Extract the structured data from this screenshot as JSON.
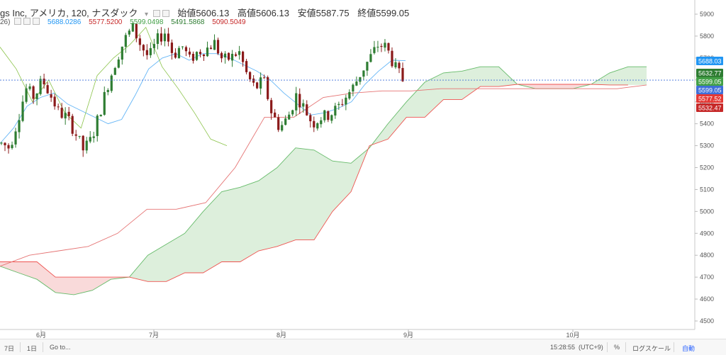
{
  "legend": {
    "title": "gs Inc, アメリカ, 120, ナスダック",
    "open_label": "始値",
    "open_value": "5606.13",
    "high_label": "高値",
    "high_value": "5606.13",
    "low_label": "安値",
    "low_value": "5587.75",
    "close_label": "終値",
    "close_value": "5599.05",
    "ichimoku_prefix": "26)",
    "ichimoku_values": [
      {
        "text": "5688.0286",
        "color": "#2196f3"
      },
      {
        "text": "5577.5200",
        "color": "#c62828"
      },
      {
        "text": "5599.0498",
        "color": "#43a047"
      },
      {
        "text": "5491.5868",
        "color": "#2e7d32"
      },
      {
        "text": "5090.5049",
        "color": "#c62828"
      }
    ]
  },
  "bottombar": {
    "range_7d": "7日",
    "range_1d": "1日",
    "goto": "Go to...",
    "time": "15:28:55",
    "timezone": "(UTC+9)",
    "percent": "%",
    "log_scale": "ログスケール",
    "auto": "自動"
  },
  "chart_data": {
    "type": "candlestick",
    "title": "",
    "xlabel": "",
    "ylabel": "",
    "ylim": [
      4470,
      5960
    ],
    "yticks": [
      4500,
      4600,
      4700,
      4800,
      4900,
      5000,
      5100,
      5200,
      5300,
      5400,
      5500,
      5600,
      5700,
      5800,
      5900
    ],
    "x_labels": [
      "6月",
      "7月",
      "8月",
      "9月",
      "10月"
    ],
    "grid": false,
    "price_line": 5599.05,
    "price_tags": [
      {
        "value": "5688.03",
        "price": 5688.03,
        "color": "#2196f3"
      },
      {
        "value": "5632.77",
        "price": 5632.77,
        "color": "#2e7d32"
      },
      {
        "value": "5599.05",
        "price": 5599.05,
        "color": "#43a047"
      },
      {
        "value": "5599.05",
        "price": 5599.05,
        "color": "#3f6fd8"
      },
      {
        "value": "5577.52",
        "price": 5577.52,
        "color": "#e53935"
      },
      {
        "value": "5532.47",
        "price": 5532.47,
        "color": "#c62828"
      }
    ],
    "candles": {
      "count": 114,
      "path": [
        5310,
        5290,
        5420,
        5560,
        5520,
        5600,
        5530,
        5450,
        5430,
        5360,
        5280,
        5330,
        5450,
        5580,
        5690,
        5780,
        5840,
        5760,
        5700,
        5780,
        5820,
        5710,
        5760,
        5690,
        5730,
        5740,
        5770,
        5690,
        5700,
        5730,
        5620,
        5560,
        5600,
        5450,
        5380,
        5430,
        5530,
        5470,
        5400,
        5430,
        5440,
        5470,
        5520,
        5570,
        5640,
        5700,
        5760,
        5750,
        5660,
        5600
      ],
      "gap_after_index": 86,
      "up_color": "#2e7d32",
      "down_color": "#8b1a1a"
    },
    "series": [
      {
        "name": "tenkan",
        "color": "#64b5f6",
        "values": [
          5310,
          5380,
          5480,
          5520,
          5540,
          5490,
          5460,
          5430,
          5400,
          5420,
          5530,
          5650,
          5700,
          5720,
          5690,
          5720,
          5720,
          5700,
          5670,
          5640,
          5600,
          5540,
          5490,
          5440,
          5450,
          5470,
          5500,
          5580,
          5640,
          5690,
          5688
        ]
      },
      {
        "name": "kijun",
        "color": "#e57373",
        "values": [
          4750,
          4800,
          4820,
          4840,
          4900,
          5010,
          5010,
          5040,
          5200,
          5430,
          5430,
          5520,
          5540,
          5550,
          5550,
          5560,
          5560,
          5560,
          5560,
          5560,
          5560,
          5560,
          5577
        ]
      },
      {
        "name": "chikou",
        "color": "#8bc34a",
        "values": [
          5750,
          5650,
          5500,
          5600,
          5450,
          5380,
          5620,
          5700,
          5760,
          5840,
          5660,
          5560,
          5450,
          5330,
          5300
        ]
      },
      {
        "name": "senkou_a",
        "color": "#66bb6a",
        "values": [
          4750,
          4720,
          4690,
          4630,
          4620,
          4640,
          4690,
          4700,
          4800,
          4850,
          4900,
          5000,
          5090,
          5110,
          5140,
          5200,
          5290,
          5280,
          5230,
          5220,
          5290,
          5400,
          5500,
          5590,
          5632,
          5640,
          5660,
          5660,
          5580,
          5560,
          5560,
          5560,
          5580,
          5632,
          5660,
          5660
        ]
      },
      {
        "name": "senkou_b",
        "color": "#ef5350",
        "values": [
          4770,
          4770,
          4770,
          4700,
          4700,
          4700,
          4700,
          4700,
          4680,
          4680,
          4720,
          4720,
          4770,
          4770,
          4820,
          4840,
          4870,
          4870,
          5000,
          5090,
          5300,
          5330,
          5430,
          5430,
          5510,
          5510,
          5570,
          5570,
          5580,
          5580,
          5580,
          5580,
          5580,
          5577,
          5577
        ]
      }
    ]
  }
}
